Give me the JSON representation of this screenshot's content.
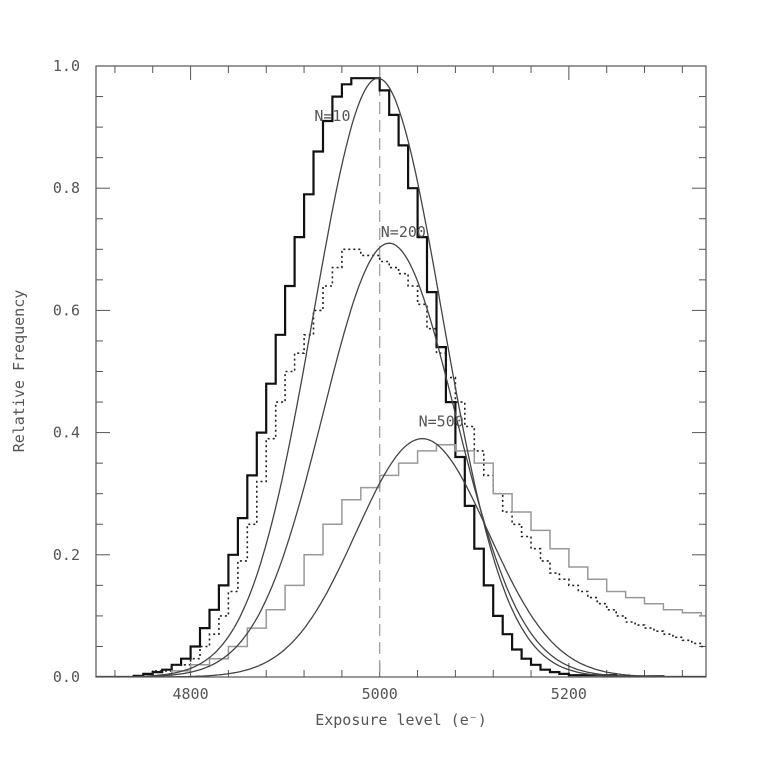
{
  "chart_data": {
    "type": "line",
    "title": "",
    "xlabel": "Exposure level (e⁻)",
    "ylabel": "Relative Frequency",
    "xlim": [
      4700,
      5345
    ],
    "ylim": [
      0,
      1.0
    ],
    "x_ticks": [
      4800,
      5000,
      5200
    ],
    "y_ticks": [
      0.0,
      0.2,
      0.4,
      0.6,
      0.8,
      1.0
    ],
    "x_tick_labels": [
      "4800",
      "5000",
      "5200"
    ],
    "y_tick_labels": [
      "0.0",
      "0.2",
      "0.4",
      "0.6",
      "0.8",
      "1.0"
    ],
    "reference_line_x": 5000,
    "grid": false,
    "annotations": [
      {
        "text": "N=10",
        "x": 4950,
        "y": 0.91
      },
      {
        "text": "N=200",
        "x": 5025,
        "y": 0.72
      },
      {
        "text": "N=500",
        "x": 5065,
        "y": 0.41
      }
    ],
    "series": [
      {
        "kind": "histogram",
        "style": "solid-thick",
        "color": "#111111",
        "x": [
          4700,
          4740,
          4750,
          4760,
          4770,
          4780,
          4790,
          4800,
          4810,
          4820,
          4830,
          4840,
          4850,
          4860,
          4870,
          4880,
          4890,
          4900,
          4910,
          4920,
          4930,
          4940,
          4950,
          4960,
          4970,
          4980,
          4990,
          5000,
          5010,
          5020,
          5030,
          5040,
          5050,
          5060,
          5070,
          5080,
          5090,
          5100,
          5110,
          5120,
          5130,
          5140,
          5150,
          5160,
          5170,
          5180,
          5190,
          5200,
          5250,
          5300,
          5345
        ],
        "values": [
          0.0,
          0.002,
          0.005,
          0.008,
          0.012,
          0.02,
          0.03,
          0.05,
          0.08,
          0.11,
          0.15,
          0.2,
          0.26,
          0.33,
          0.4,
          0.48,
          0.56,
          0.64,
          0.72,
          0.79,
          0.86,
          0.91,
          0.95,
          0.97,
          0.98,
          0.98,
          0.98,
          0.96,
          0.92,
          0.87,
          0.8,
          0.72,
          0.63,
          0.54,
          0.45,
          0.36,
          0.28,
          0.21,
          0.15,
          0.1,
          0.07,
          0.045,
          0.03,
          0.02,
          0.012,
          0.008,
          0.005,
          0.003,
          0.001,
          0.0,
          0.0
        ]
      },
      {
        "kind": "histogram",
        "style": "dotted",
        "color": "#222222",
        "x": [
          4700,
          4760,
          4780,
          4800,
          4810,
          4820,
          4830,
          4840,
          4850,
          4860,
          4870,
          4880,
          4890,
          4900,
          4910,
          4920,
          4930,
          4940,
          4950,
          4960,
          4970,
          4980,
          4990,
          5000,
          5010,
          5020,
          5030,
          5040,
          5050,
          5060,
          5070,
          5080,
          5090,
          5100,
          5110,
          5120,
          5130,
          5140,
          5150,
          5160,
          5170,
          5180,
          5190,
          5200,
          5210,
          5220,
          5230,
          5240,
          5250,
          5260,
          5270,
          5280,
          5290,
          5300,
          5310,
          5320,
          5330,
          5340,
          5345
        ],
        "values": [
          0.0,
          0.01,
          0.02,
          0.03,
          0.05,
          0.07,
          0.1,
          0.14,
          0.19,
          0.25,
          0.32,
          0.39,
          0.45,
          0.5,
          0.53,
          0.56,
          0.6,
          0.64,
          0.67,
          0.7,
          0.7,
          0.69,
          0.69,
          0.68,
          0.67,
          0.66,
          0.64,
          0.61,
          0.57,
          0.53,
          0.49,
          0.45,
          0.41,
          0.37,
          0.33,
          0.3,
          0.27,
          0.25,
          0.23,
          0.21,
          0.19,
          0.17,
          0.16,
          0.15,
          0.14,
          0.13,
          0.12,
          0.11,
          0.1,
          0.09,
          0.085,
          0.08,
          0.075,
          0.07,
          0.065,
          0.06,
          0.055,
          0.05,
          0.05
        ]
      },
      {
        "kind": "histogram",
        "style": "solid-light",
        "color": "#999999",
        "x": [
          4700,
          4780,
          4800,
          4820,
          4840,
          4860,
          4880,
          4900,
          4920,
          4940,
          4960,
          4980,
          5000,
          5020,
          5040,
          5060,
          5080,
          5100,
          5120,
          5140,
          5160,
          5180,
          5200,
          5220,
          5240,
          5260,
          5280,
          5300,
          5320,
          5340,
          5345
        ],
        "values": [
          0.0,
          0.01,
          0.02,
          0.03,
          0.05,
          0.08,
          0.11,
          0.15,
          0.2,
          0.25,
          0.29,
          0.31,
          0.33,
          0.35,
          0.37,
          0.38,
          0.37,
          0.35,
          0.3,
          0.27,
          0.24,
          0.21,
          0.18,
          0.16,
          0.14,
          0.13,
          0.12,
          0.11,
          0.105,
          0.1,
          0.1
        ]
      },
      {
        "kind": "gaussian",
        "label": "N=10",
        "mean": 4998,
        "sigma": 68,
        "peak": 0.98,
        "color": "#444444"
      },
      {
        "kind": "gaussian",
        "label": "N=200",
        "mean": 5010,
        "sigma": 70,
        "peak": 0.71,
        "color": "#444444"
      },
      {
        "kind": "gaussian",
        "label": "N=500",
        "mean": 5045,
        "sigma": 70,
        "peak": 0.39,
        "color": "#444444"
      }
    ]
  }
}
